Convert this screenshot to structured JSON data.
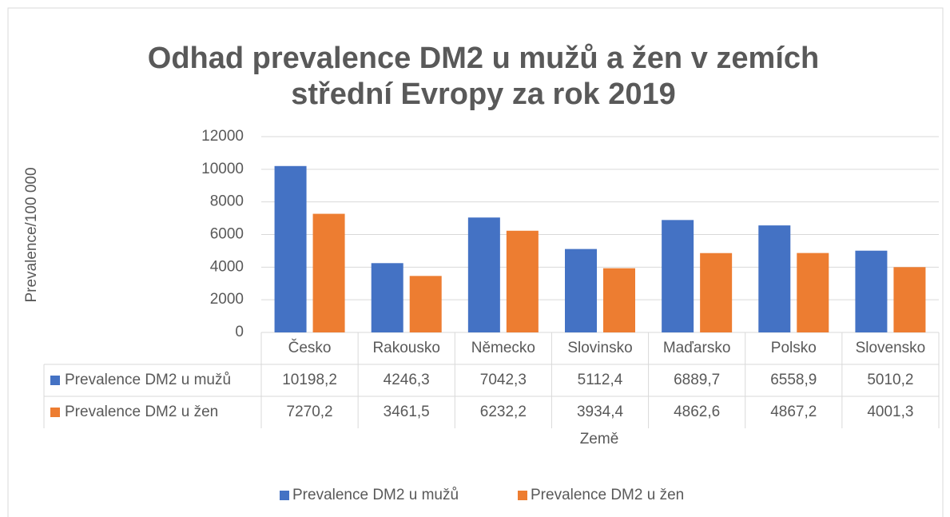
{
  "chart_data": {
    "type": "bar",
    "title": [
      "Odhad prevalence DM2 u mužů a žen v zemích",
      "střední Evropy za rok 2019"
    ],
    "x_label": "Země",
    "y_label": "Prevalence/100 000",
    "categories": [
      "Česko",
      "Rakousko",
      "Německo",
      "Slovinsko",
      "Maďarsko",
      "Polsko",
      "Slovensko"
    ],
    "series": [
      {
        "name": "Prevalence DM2 u mužů",
        "color": "#4472c4",
        "values": [
          10198.2,
          4246.3,
          7042.3,
          5112.4,
          6889.7,
          6558.9,
          5010.2
        ],
        "value_labels": [
          "10198,2",
          "4246,3",
          "7042,3",
          "5112,4",
          "6889,7",
          "6558,9",
          "5010,2"
        ]
      },
      {
        "name": "Prevalence DM2 u žen",
        "color": "#ed7d31",
        "values": [
          7270.2,
          3461.5,
          6232.2,
          3934.4,
          4862.6,
          4867.2,
          4001.3
        ],
        "value_labels": [
          "7270,2",
          "3461,5",
          "6232,2",
          "3934,4",
          "4862,6",
          "4867,2",
          "4001,3"
        ]
      }
    ],
    "ylim": [
      0,
      12000
    ],
    "yticks": [
      0,
      2000,
      4000,
      6000,
      8000,
      10000,
      12000
    ],
    "grid": true,
    "legend": "bottom"
  }
}
